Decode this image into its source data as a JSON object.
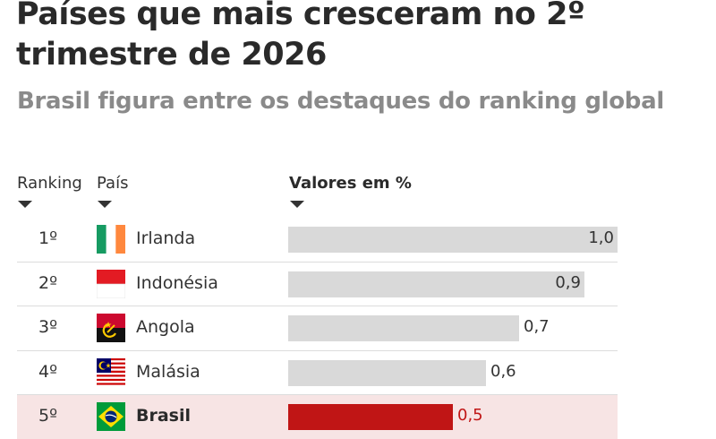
{
  "chart_data": {
    "type": "bar",
    "orientation": "horizontal",
    "title": "Países que mais cresceram no 2º trimestre de 2026",
    "subtitle": "Brasil figura entre os destaques do ranking global",
    "columns": {
      "rank": "Ranking",
      "country": "País",
      "values": "Valores em %"
    },
    "rows": [
      {
        "rank": "1º",
        "country": "Irlanda",
        "flag": "ireland-flag-icon",
        "value": 1.0,
        "label": "1,0",
        "highlight": false
      },
      {
        "rank": "2º",
        "country": "Indonésia",
        "flag": "indonesia-flag-icon",
        "value": 0.9,
        "label": "0,9",
        "highlight": false
      },
      {
        "rank": "3º",
        "country": "Angola",
        "flag": "angola-flag-icon",
        "value": 0.7,
        "label": "0,7",
        "highlight": false
      },
      {
        "rank": "4º",
        "country": "Malásia",
        "flag": "malaysia-flag-icon",
        "value": 0.6,
        "label": "0,6",
        "highlight": false
      },
      {
        "rank": "5º",
        "country": "Brasil",
        "flag": "brazil-flag-icon",
        "value": 0.5,
        "label": "0,5",
        "highlight": true
      }
    ],
    "xlim": [
      0,
      1.0
    ],
    "grid": false,
    "colors": {
      "bar": "#d9d9d9",
      "highlight_bar": "#c01515",
      "highlight_row": "#f7e4e4"
    }
  }
}
